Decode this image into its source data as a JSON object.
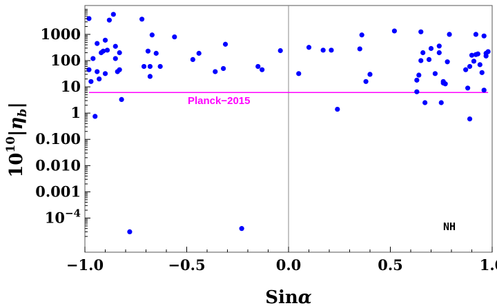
{
  "chart_data": {
    "type": "scatter",
    "xlabel": "Sinα",
    "ylabel": "10^{10}|η_b|",
    "xlim": [
      -1.0,
      1.0
    ],
    "ylim_log10": [
      -5.3,
      4.1
    ],
    "y_scale": "log",
    "x_ticks": [
      "−1.0",
      "−0.5",
      "0.0",
      "0.5",
      "1.0"
    ],
    "y_ticks": [
      {
        "label": "1000",
        "value": 1000
      },
      {
        "label": "100",
        "value": 100
      },
      {
        "label": "10",
        "value": 10
      },
      {
        "label": "1",
        "value": 1
      },
      {
        "label": "0.100",
        "value": 0.1
      },
      {
        "label": "0.010",
        "value": 0.01
      },
      {
        "label": "0.001",
        "value": 0.001
      },
      {
        "label": "10^-4",
        "value": 0.0001
      }
    ],
    "point_color": "#0000ff",
    "reference_line": {
      "label": "Planck−2015",
      "y": 6.1,
      "color": "#ff00ff"
    },
    "annotation": "NH",
    "series": [
      {
        "x": [
          -0.98,
          -0.98,
          -0.97,
          -0.96,
          -0.95,
          -0.94,
          -0.94,
          -0.93,
          -0.92,
          -0.91,
          -0.9,
          -0.9,
          -0.89,
          -0.88,
          -0.86,
          -0.85,
          -0.85,
          -0.84,
          -0.83,
          -0.83,
          -0.82,
          -0.78,
          -0.72,
          -0.71,
          -0.69,
          -0.68,
          -0.68,
          -0.67,
          -0.65,
          -0.63,
          -0.56,
          -0.47,
          -0.44,
          -0.36,
          -0.32,
          -0.31,
          -0.23,
          -0.15,
          -0.13,
          -0.04,
          0.05,
          0.1,
          0.17,
          0.21,
          0.24,
          0.35,
          0.36,
          0.38,
          0.4,
          0.52,
          0.63,
          0.63,
          0.64,
          0.65,
          0.65,
          0.66,
          0.67,
          0.69,
          0.7,
          0.72,
          0.74,
          0.74,
          0.75,
          0.76,
          0.76,
          0.77,
          0.78,
          0.79,
          0.87,
          0.88,
          0.89,
          0.89,
          0.9,
          0.91,
          0.92,
          0.92,
          0.93,
          0.94,
          0.95,
          0.96,
          0.96,
          0.97,
          0.97,
          0.98
        ],
        "y": [
          4000,
          45,
          16,
          120,
          0.75,
          450,
          38,
          20,
          200,
          230,
          32,
          600,
          250,
          3500,
          5800,
          350,
          120,
          38,
          200,
          45,
          3.3,
          3e-05,
          3800,
          60,
          230,
          25,
          60,
          950,
          190,
          60,
          800,
          110,
          190,
          38,
          50,
          420,
          4e-05,
          60,
          45,
          240,
          32,
          320,
          250,
          250,
          1.4,
          280,
          950,
          16,
          30,
          1350,
          18,
          6.5,
          28,
          100,
          1250,
          200,
          2.5,
          110,
          290,
          32,
          360,
          200,
          2.5,
          16,
          14,
          13,
          90,
          1000,
          45,
          9,
          0.6,
          60,
          160,
          95,
          1000,
          170,
          180,
          70,
          35,
          7.5,
          870,
          190,
          150,
          220
        ]
      }
    ]
  }
}
